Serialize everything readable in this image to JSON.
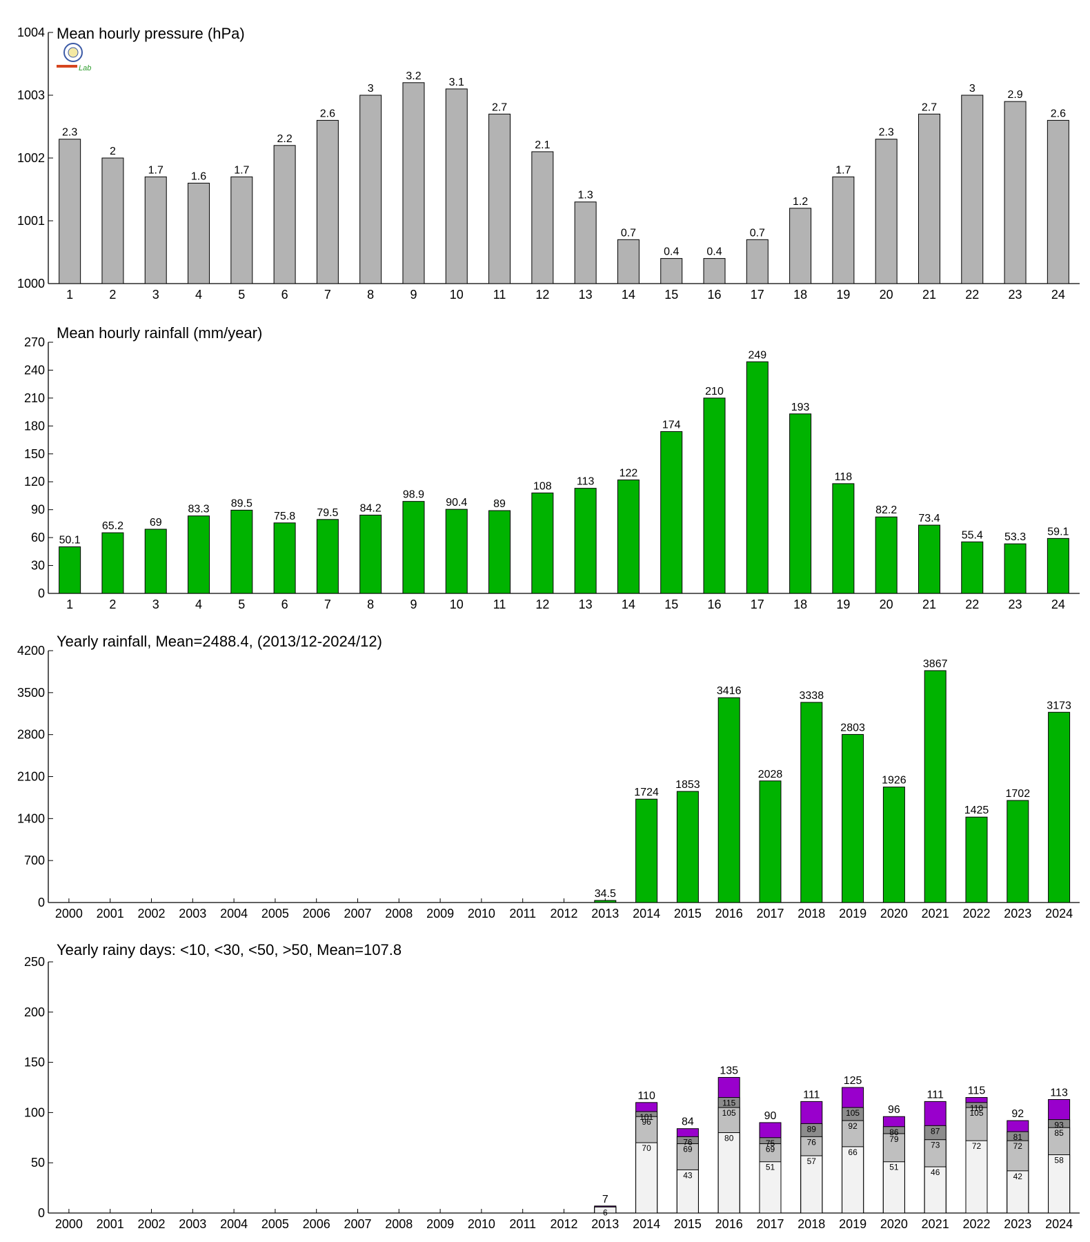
{
  "chart_data": [
    {
      "type": "bar",
      "title": "Mean hourly pressure (hPa)",
      "categories": [
        "1",
        "2",
        "3",
        "4",
        "5",
        "6",
        "7",
        "8",
        "9",
        "10",
        "11",
        "12",
        "13",
        "14",
        "15",
        "16",
        "17",
        "18",
        "19",
        "20",
        "21",
        "22",
        "23",
        "24"
      ],
      "values": [
        1002.3,
        1002.0,
        1001.7,
        1001.6,
        1001.7,
        1002.2,
        1002.6,
        1003.0,
        1003.2,
        1003.1,
        1002.7,
        1002.1,
        1001.3,
        1000.7,
        1000.4,
        1000.4,
        1000.7,
        1001.2,
        1001.7,
        1002.3,
        1002.7,
        1003.0,
        1002.9,
        1002.6
      ],
      "labels": [
        "2.3",
        "2",
        "1.7",
        "1.6",
        "1.7",
        "2.2",
        "2.6",
        "3",
        "3.2",
        "3.1",
        "2.7",
        "2.1",
        "1.3",
        "0.7",
        "0.4",
        "0.4",
        "0.7",
        "1.2",
        "1.7",
        "2.3",
        "2.7",
        "3",
        "2.9",
        "2.6"
      ],
      "ylim": [
        1000,
        1004
      ],
      "yticks": [
        "1000",
        "1001",
        "1002",
        "1003",
        "1004"
      ],
      "color": "#b3b3b3",
      "logo_text": "Lab"
    },
    {
      "type": "bar",
      "title": "Mean hourly rainfall (mm/year)",
      "categories": [
        "1",
        "2",
        "3",
        "4",
        "5",
        "6",
        "7",
        "8",
        "9",
        "10",
        "11",
        "12",
        "13",
        "14",
        "15",
        "16",
        "17",
        "18",
        "19",
        "20",
        "21",
        "22",
        "23",
        "24"
      ],
      "values": [
        50.1,
        65.2,
        69,
        83.3,
        89.5,
        75.8,
        79.5,
        84.2,
        98.9,
        90.4,
        89,
        108,
        113,
        122,
        174,
        210,
        249,
        193,
        118,
        82.2,
        73.4,
        55.4,
        53.3,
        59.1
      ],
      "labels": [
        "50.1",
        "65.2",
        "69",
        "83.3",
        "89.5",
        "75.8",
        "79.5",
        "84.2",
        "98.9",
        "90.4",
        "89",
        "108",
        "113",
        "122",
        "174",
        "210",
        "249",
        "193",
        "118",
        "82.2",
        "73.4",
        "55.4",
        "53.3",
        "59.1"
      ],
      "ylim": [
        0,
        270
      ],
      "yticks": [
        "0",
        "30",
        "60",
        "90",
        "120",
        "150",
        "180",
        "210",
        "240",
        "270"
      ],
      "color": "#00b300"
    },
    {
      "type": "bar",
      "title": "Yearly rainfall, Mean=2488.4, (2013/12-2024/12)",
      "categories": [
        "2000",
        "2001",
        "2002",
        "2003",
        "2004",
        "2005",
        "2006",
        "2007",
        "2008",
        "2009",
        "2010",
        "2011",
        "2012",
        "2013",
        "2014",
        "2015",
        "2016",
        "2017",
        "2018",
        "2019",
        "2020",
        "2021",
        "2022",
        "2023",
        "2024"
      ],
      "values": [
        null,
        null,
        null,
        null,
        null,
        null,
        null,
        null,
        null,
        null,
        null,
        null,
        null,
        34.5,
        1724,
        1853,
        3416,
        2028,
        3338,
        2803,
        1926,
        3867,
        1425,
        1702,
        3173
      ],
      "labels": [
        "",
        "",
        "",
        "",
        "",
        "",
        "",
        "",
        "",
        "",
        "",
        "",
        "",
        "34.5",
        "1724",
        "1853",
        "3416",
        "2028",
        "3338",
        "2803",
        "1926",
        "3867",
        "1425",
        "1702",
        "3173"
      ],
      "ylim": [
        0,
        4200
      ],
      "yticks": [
        "0",
        "700",
        "1400",
        "2100",
        "2800",
        "3500",
        "4200"
      ],
      "color": "#00b300"
    },
    {
      "type": "bar",
      "stacked": true,
      "title": "Yearly rainy days: <10, <30, <50, >50, Mean=107.8",
      "categories": [
        "2000",
        "2001",
        "2002",
        "2003",
        "2004",
        "2005",
        "2006",
        "2007",
        "2008",
        "2009",
        "2010",
        "2011",
        "2012",
        "2013",
        "2014",
        "2015",
        "2016",
        "2017",
        "2018",
        "2019",
        "2020",
        "2021",
        "2022",
        "2023",
        "2024"
      ],
      "cumulative": [
        {
          "level": "<10",
          "color": "#f2f2f2",
          "values": [
            null,
            null,
            null,
            null,
            null,
            null,
            null,
            null,
            null,
            null,
            null,
            null,
            null,
            6,
            70,
            43,
            80,
            51,
            57,
            66,
            51,
            46,
            72,
            42,
            58
          ]
        },
        {
          "level": "<30",
          "color": "#bfbfbf",
          "values": [
            null,
            null,
            null,
            null,
            null,
            null,
            null,
            null,
            null,
            null,
            null,
            null,
            null,
            6,
            96,
            69,
            105,
            69,
            76,
            92,
            79,
            73,
            105,
            72,
            85
          ]
        },
        {
          "level": "<50",
          "color": "#8c8c8c",
          "values": [
            null,
            null,
            null,
            null,
            null,
            null,
            null,
            null,
            null,
            null,
            null,
            null,
            null,
            6,
            101,
            76,
            115,
            75,
            89,
            105,
            86,
            87,
            110,
            81,
            93
          ]
        },
        {
          "level": ">50",
          "color": "#9900cc",
          "values": [
            null,
            null,
            null,
            null,
            null,
            null,
            null,
            null,
            null,
            null,
            null,
            null,
            null,
            7,
            110,
            84,
            135,
            90,
            111,
            125,
            96,
            111,
            115,
            92,
            113
          ]
        }
      ],
      "segment_labels": [
        [
          "",
          "",
          "",
          "",
          "",
          "",
          "",
          "",
          "",
          "",
          "",
          "",
          "",
          "6",
          "70",
          "43",
          "80",
          "51",
          "57",
          "66",
          "51",
          "46",
          "72",
          "42",
          "58"
        ],
        [
          "",
          "",
          "",
          "",
          "",
          "",
          "",
          "",
          "",
          "",
          "",
          "",
          "",
          "",
          "96",
          "69",
          "105",
          "69",
          "76",
          "92",
          "79",
          "73",
          "105",
          "72",
          "85"
        ],
        [
          "",
          "",
          "",
          "",
          "",
          "",
          "",
          "",
          "",
          "",
          "",
          "",
          "",
          "",
          "101",
          "76",
          "115",
          "75",
          "89",
          "105",
          "86",
          "87",
          "110",
          "81",
          "93"
        ]
      ],
      "labels": [
        "",
        "",
        "",
        "",
        "",
        "",
        "",
        "",
        "",
        "",
        "",
        "",
        "",
        "7",
        "110",
        "84",
        "135",
        "90",
        "111",
        "125",
        "96",
        "111",
        "115",
        "92",
        "113"
      ],
      "ylim": [
        0,
        250
      ],
      "yticks": [
        "0",
        "50",
        "100",
        "150",
        "200",
        "250"
      ]
    }
  ]
}
